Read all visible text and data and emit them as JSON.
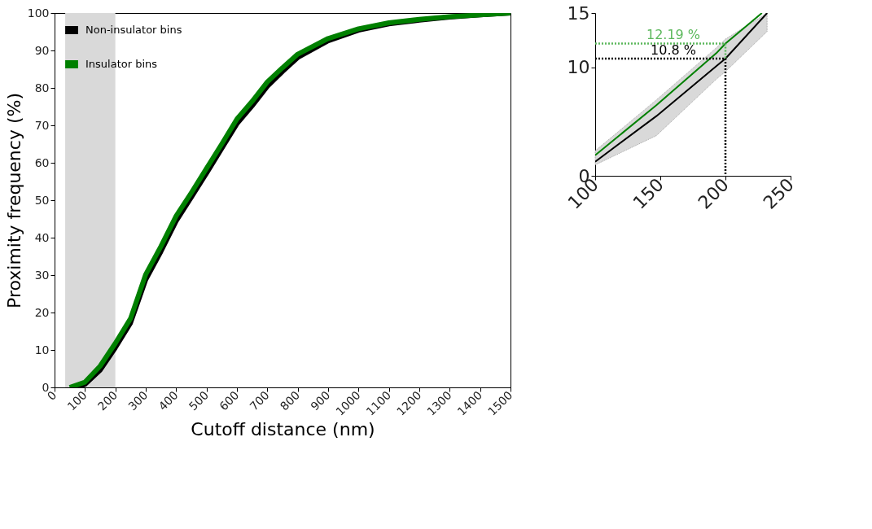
{
  "chart_data": [
    {
      "type": "line",
      "xlabel": "Cutoff distance (nm)",
      "ylabel": "Proximity frequency (%)",
      "xlim": [
        0,
        1500
      ],
      "xticks": [
        0,
        100,
        200,
        300,
        400,
        500,
        600,
        700,
        800,
        900,
        1000,
        1100,
        1200,
        1300,
        1400,
        1500
      ],
      "ylim": [
        0,
        100
      ],
      "yticks": [
        0,
        10,
        20,
        30,
        40,
        50,
        60,
        70,
        80,
        90,
        100
      ],
      "grid": false,
      "legend": "top left",
      "bands": [
        {
          "axis": "x",
          "from": 35,
          "to": 200,
          "color": "#d9d9d9"
        }
      ],
      "x": [
        50,
        100,
        150,
        200,
        250,
        300,
        350,
        400,
        450,
        500,
        550,
        600,
        650,
        700,
        750,
        800,
        900,
        1000,
        1100,
        1200,
        1300,
        1400,
        1500
      ],
      "series": [
        {
          "name": "Non-insulator bins",
          "color": "#000000",
          "x": [
            75,
            100,
            150,
            200,
            250,
            300,
            350,
            400,
            450,
            500,
            550,
            600,
            650,
            700,
            750,
            800,
            900,
            1000,
            1100,
            1200,
            1300,
            1400,
            1500
          ],
          "values": [
            0,
            0.8,
            4.6,
            10.6,
            17.2,
            28.8,
            36.3,
            44.4,
            50.8,
            57.2,
            63.8,
            70.4,
            75.2,
            80.4,
            84.4,
            88.1,
            92.6,
            95.4,
            97.1,
            98.1,
            98.9,
            99.5,
            100
          ]
        },
        {
          "name": "Insulator bins",
          "color": "#008000",
          "values": [
            0,
            1.4,
            5.7,
            11.8,
            18.4,
            30.2,
            37.7,
            45.8,
            52,
            58.5,
            65,
            71.7,
            76.4,
            81.6,
            85.4,
            89,
            93.2,
            95.8,
            97.4,
            98.3,
            99,
            99.5,
            100
          ]
        }
      ]
    },
    {
      "type": "line",
      "xlim": [
        100,
        250
      ],
      "xticks": [
        100,
        150,
        200,
        250
      ],
      "ylim": [
        0,
        15
      ],
      "yticks": [
        0,
        10,
        15
      ],
      "grid": false,
      "annotations": [
        {
          "text": "12.19 %",
          "x": 200,
          "y": 12.19
        },
        {
          "text": "10.8 %",
          "x": 200,
          "y": 10.8
        }
      ],
      "series": [
        {
          "color": "#008000",
          "x": [
            100,
            147,
            193,
            200,
            228
          ],
          "values": [
            1.9,
            6.5,
            11.3,
            12.19,
            15
          ]
        },
        {
          "color": "#000000",
          "x": [
            100,
            147,
            193,
            200,
            232
          ],
          "values": [
            1.3,
            5.5,
            10.1,
            10.8,
            15
          ],
          "lower": [
            1.0,
            3.7,
            8.9,
            9.6,
            13.3
          ],
          "upper": [
            2.3,
            7.0,
            11.8,
            12.6,
            15
          ]
        },
        {
          "color": "#5cb85c",
          "line_style": "dotted",
          "x": [
            100,
            200,
            200
          ],
          "values": [
            12.19,
            12.19,
            10.8
          ]
        },
        {
          "color": "#000000",
          "line_style": "dotted",
          "x": [
            100,
            200,
            200
          ],
          "values": [
            10.8,
            10.8,
            0
          ]
        }
      ]
    }
  ]
}
